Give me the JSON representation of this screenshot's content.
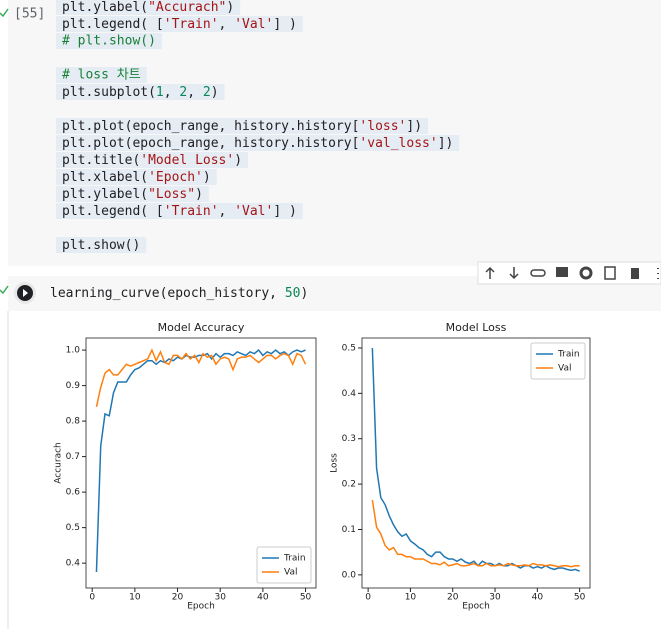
{
  "cell_1": {
    "execution_count": "[55]",
    "code_blocks": [
      [
        "plt.ylabel(\"Accurach\")",
        "plt.legend( ['Train', 'Val']  )",
        "# plt.show()"
      ],
      [
        "# loss 차트",
        "plt.subplot(1, 2, 2)"
      ],
      [
        "plt.plot(epoch_range, history.history['loss'])",
        "plt.plot(epoch_range, history.history['val_loss'])",
        "plt.title('Model Loss')",
        "plt.xlabel('Epoch')",
        "plt.ylabel(\"Loss\")",
        "plt.legend( ['Train', 'Val']  )"
      ],
      [
        "plt.show()"
      ]
    ]
  },
  "cell_2": {
    "code": "learning_curve(epoch_history, 50)"
  },
  "chart_data": [
    {
      "type": "line",
      "title": "Model Accuracy",
      "xlabel": "Epoch",
      "ylabel": "Accurach",
      "x": [
        1,
        2,
        3,
        4,
        5,
        6,
        7,
        8,
        9,
        10,
        11,
        12,
        13,
        14,
        15,
        16,
        17,
        18,
        19,
        20,
        21,
        22,
        23,
        24,
        25,
        26,
        27,
        28,
        29,
        30,
        31,
        32,
        33,
        34,
        35,
        36,
        37,
        38,
        39,
        40,
        41,
        42,
        43,
        44,
        45,
        46,
        47,
        48,
        49,
        50
      ],
      "series": [
        {
          "name": "Train",
          "color": "#1f77b4",
          "values": [
            0.375,
            0.73,
            0.82,
            0.815,
            0.88,
            0.91,
            0.91,
            0.91,
            0.93,
            0.945,
            0.95,
            0.96,
            0.97,
            0.97,
            0.96,
            0.97,
            0.965,
            0.975,
            0.97,
            0.98,
            0.975,
            0.985,
            0.98,
            0.98,
            0.985,
            0.985,
            0.99,
            0.975,
            0.99,
            0.98,
            0.99,
            0.99,
            0.985,
            0.995,
            0.99,
            0.985,
            0.995,
            0.99,
            1.0,
            0.985,
            0.995,
            0.99,
            1.0,
            0.99,
            0.995,
            0.985,
            0.995,
            1.0,
            0.995,
            1.0
          ]
        },
        {
          "name": "Val",
          "color": "#ff7f0e",
          "values": [
            0.84,
            0.895,
            0.935,
            0.945,
            0.93,
            0.93,
            0.945,
            0.96,
            0.955,
            0.96,
            0.965,
            0.97,
            0.975,
            1.0,
            0.97,
            0.995,
            0.965,
            0.96,
            0.985,
            0.985,
            0.975,
            0.99,
            0.975,
            0.985,
            0.965,
            0.99,
            0.98,
            0.985,
            0.96,
            0.975,
            0.98,
            0.975,
            0.945,
            0.975,
            0.98,
            0.98,
            0.985,
            0.975,
            0.965,
            0.975,
            0.985,
            0.985,
            0.975,
            0.985,
            0.99,
            0.985,
            0.96,
            0.99,
            0.985,
            0.96
          ]
        }
      ],
      "xlim": [
        -1.45,
        52.45
      ],
      "xticks": [
        0,
        10,
        20,
        30,
        40,
        50
      ],
      "ylim": [
        0.33,
        1.034
      ],
      "yticks": [
        0.4,
        0.5,
        0.6,
        0.7,
        0.8,
        0.9,
        {
          "value": 1,
          "label": "1.0"
        }
      ],
      "legend": "lower right"
    },
    {
      "type": "line",
      "title": "Model Loss",
      "xlabel": "Epoch",
      "ylabel": "Loss",
      "x": [
        1,
        2,
        3,
        4,
        5,
        6,
        7,
        8,
        9,
        10,
        11,
        12,
        13,
        14,
        15,
        16,
        17,
        18,
        19,
        20,
        21,
        22,
        23,
        24,
        25,
        26,
        27,
        28,
        29,
        30,
        31,
        32,
        33,
        34,
        35,
        36,
        37,
        38,
        39,
        40,
        41,
        42,
        43,
        44,
        45,
        46,
        47,
        48,
        49,
        50
      ],
      "series": [
        {
          "name": "Train",
          "color": "#1f77b4",
          "values": [
            0.5,
            0.235,
            0.17,
            0.155,
            0.13,
            0.11,
            0.095,
            0.085,
            0.09,
            0.075,
            0.068,
            0.06,
            0.055,
            0.045,
            0.04,
            0.05,
            0.05,
            0.04,
            0.035,
            0.035,
            0.03,
            0.035,
            0.028,
            0.025,
            0.03,
            0.02,
            0.03,
            0.025,
            0.025,
            0.02,
            0.025,
            0.02,
            0.02,
            0.025,
            0.02,
            0.015,
            0.02,
            0.02,
            0.015,
            0.018,
            0.015,
            0.02,
            0.015,
            0.012,
            0.015,
            0.015,
            0.012,
            0.01,
            0.012,
            0.008
          ]
        },
        {
          "name": "Val",
          "color": "#ff7f0e",
          "values": [
            0.165,
            0.105,
            0.09,
            0.065,
            0.055,
            0.06,
            0.045,
            0.045,
            0.04,
            0.04,
            0.035,
            0.035,
            0.035,
            0.03,
            0.025,
            0.025,
            0.022,
            0.028,
            0.02,
            0.022,
            0.025,
            0.02,
            0.02,
            0.022,
            0.025,
            0.02,
            0.02,
            0.025,
            0.02,
            0.02,
            0.022,
            0.02,
            0.025,
            0.022,
            0.02,
            0.02,
            0.022,
            0.02,
            0.025,
            0.022,
            0.022,
            0.02,
            0.022,
            0.02,
            0.018,
            0.02,
            0.02,
            0.018,
            0.02,
            0.02
          ]
        }
      ],
      "xlim": [
        -1.45,
        52.45
      ],
      "xticks": [
        0,
        10,
        20,
        30,
        40,
        50
      ],
      "ylim": [
        -0.029,
        0.522
      ],
      "yticks": [
        {
          "value": 0,
          "label": "0.0"
        },
        0.1,
        0.2,
        0.3,
        0.4,
        0.5
      ],
      "legend": "upper right"
    }
  ]
}
